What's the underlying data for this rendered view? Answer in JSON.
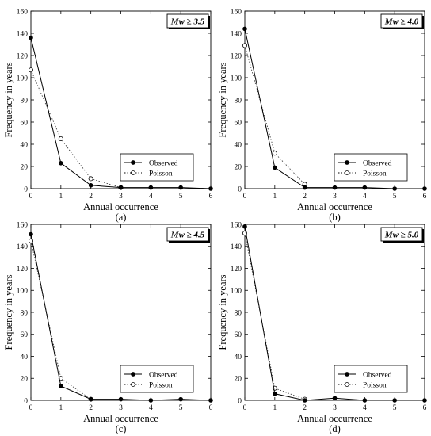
{
  "chart_data": [
    {
      "type": "line",
      "panel_label": "(a)",
      "badge": "Mw ≥ 3.5",
      "xlabel": "Annual occurrence",
      "ylabel": "Frequency in years",
      "xlim": [
        0,
        6
      ],
      "ylim": [
        0,
        160
      ],
      "xticks": [
        "0",
        "1",
        "2",
        "3",
        "4",
        "5",
        "6"
      ],
      "yticks": [
        "0",
        "20",
        "40",
        "60",
        "80",
        "100",
        "120",
        "140",
        "160"
      ],
      "legend_position": "bottom-right",
      "series": [
        {
          "name": "Observed",
          "style": "solid-filled",
          "x": [
            0,
            1,
            2,
            3,
            4,
            5,
            6
          ],
          "y": [
            136,
            23,
            3,
            1,
            1,
            1,
            0
          ]
        },
        {
          "name": "Poisson",
          "style": "dotted-open",
          "x": [
            0,
            1,
            2,
            3
          ],
          "y": [
            107,
            45,
            9,
            1
          ]
        }
      ]
    },
    {
      "type": "line",
      "panel_label": "(b)",
      "badge": "Mw ≥ 4.0",
      "xlabel": "Annual occurrence",
      "ylabel": "Frequency in years",
      "xlim": [
        0,
        6
      ],
      "ylim": [
        0,
        160
      ],
      "xticks": [
        "0",
        "1",
        "2",
        "3",
        "4",
        "5",
        "6"
      ],
      "yticks": [
        "0",
        "20",
        "40",
        "60",
        "80",
        "100",
        "120",
        "140",
        "160"
      ],
      "legend_position": "bottom-right",
      "series": [
        {
          "name": "Observed",
          "style": "solid-filled",
          "x": [
            0,
            1,
            2,
            3,
            4,
            5,
            6
          ],
          "y": [
            144,
            19,
            1,
            1,
            1,
            0,
            0
          ]
        },
        {
          "name": "Poisson",
          "style": "dotted-open",
          "x": [
            0,
            1,
            2
          ],
          "y": [
            129,
            32,
            4
          ]
        }
      ]
    },
    {
      "type": "line",
      "panel_label": "(c)",
      "badge": "Mw ≥ 4.5",
      "xlabel": "Annual occurrence",
      "ylabel": "Frequency in years",
      "xlim": [
        0,
        6
      ],
      "ylim": [
        0,
        160
      ],
      "xticks": [
        "0",
        "1",
        "2",
        "3",
        "4",
        "5",
        "6"
      ],
      "yticks": [
        "0",
        "20",
        "40",
        "60",
        "80",
        "100",
        "120",
        "140",
        "160"
      ],
      "legend_position": "bottom-right",
      "series": [
        {
          "name": "Observed",
          "style": "solid-filled",
          "x": [
            0,
            1,
            2,
            3,
            4,
            5,
            6
          ],
          "y": [
            151,
            13,
            1,
            1,
            0,
            1,
            0
          ]
        },
        {
          "name": "Poisson",
          "style": "dotted-open",
          "x": [
            0,
            1,
            2
          ],
          "y": [
            145,
            20,
            1
          ]
        }
      ]
    },
    {
      "type": "line",
      "panel_label": "(d)",
      "badge": "Mw ≥ 5.0",
      "xlabel": "Annual occurrence",
      "ylabel": "Frequency in years",
      "xlim": [
        0,
        6
      ],
      "ylim": [
        0,
        160
      ],
      "xticks": [
        "0",
        "1",
        "2",
        "3",
        "4",
        "5",
        "6"
      ],
      "yticks": [
        "0",
        "20",
        "40",
        "60",
        "80",
        "100",
        "120",
        "140",
        "160"
      ],
      "legend_position": "bottom-right",
      "series": [
        {
          "name": "Observed",
          "style": "solid-filled",
          "x": [
            0,
            1,
            2,
            3,
            4,
            5,
            6
          ],
          "y": [
            158,
            6,
            0,
            2,
            0,
            0,
            0
          ]
        },
        {
          "name": "Poisson",
          "style": "dotted-open",
          "x": [
            0,
            1,
            2
          ],
          "y": [
            152,
            11,
            1
          ]
        }
      ]
    }
  ]
}
